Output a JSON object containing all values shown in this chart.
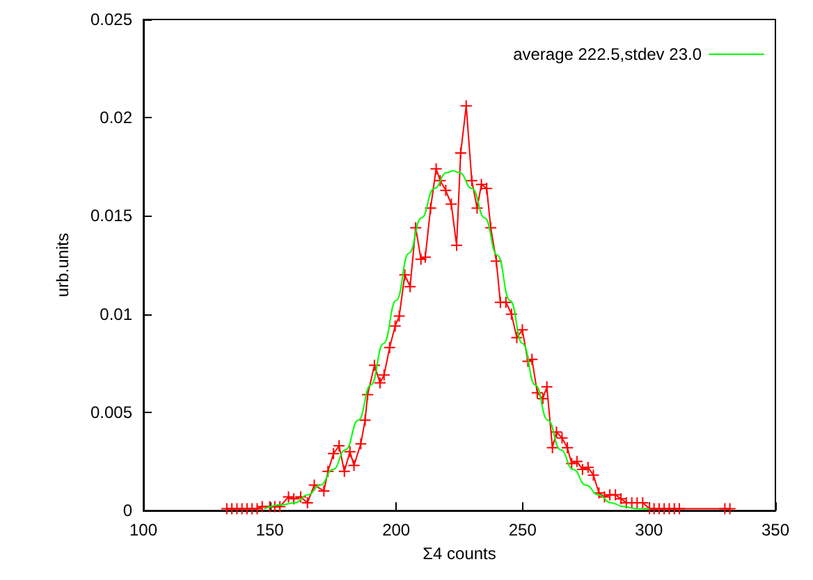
{
  "chart_data": {
    "type": "line",
    "xlabel": "Σ4 counts",
    "ylabel": "urb.units",
    "xlim": [
      100,
      350
    ],
    "xticks": [
      100,
      150,
      200,
      250,
      300,
      350
    ],
    "ylim": [
      0,
      0.025
    ],
    "yticks": [
      0,
      0.005,
      0.01,
      0.015,
      0.02,
      0.025
    ],
    "grid": false,
    "legend": "top right",
    "series": [
      {
        "color": "#ff0000",
        "marker": "cross",
        "x": [
          133,
          135,
          137,
          139,
          141,
          143,
          145,
          147,
          150,
          152,
          154,
          157.4,
          159.5,
          162.2,
          164.9,
          167.6,
          171.4,
          173,
          175.2,
          177.4,
          179.5,
          181.7,
          183.3,
          186,
          187.7,
          188.7,
          191.4,
          193.6,
          195.2,
          197.4,
          199.6,
          201.2,
          203.4,
          205.5,
          207.7,
          209.8,
          211.5,
          213.6,
          215.8,
          217.4,
          219.6,
          221.8,
          223.9,
          225.5,
          227.7,
          229.9,
          232,
          233.7,
          235.8,
          237.4,
          239.6,
          241.2,
          243.4,
          245.6,
          247.7,
          249.9,
          252.1,
          253.7,
          255.8,
          258,
          259.6,
          261.8,
          263.4,
          265.6,
          267.7,
          269.4,
          271.5,
          273.7,
          275.9,
          278,
          280.2,
          282.4,
          284.5,
          286.7,
          288.9,
          291,
          293.2,
          295.3,
          297.5,
          300.2,
          302,
          304,
          306,
          308,
          310,
          312,
          330,
          332
        ],
        "values": [
          0.0001,
          0.0001,
          0.0001,
          0.0001,
          0.0001,
          0.0001,
          0.0001,
          0.0002,
          0.0002,
          0.0002,
          0.0002,
          0.0007,
          0.0006,
          0.0007,
          0.0004,
          0.0013,
          0.001,
          0.002,
          0.0029,
          0.0033,
          0.002,
          0.003,
          0.0023,
          0.0034,
          0.0046,
          0.0059,
          0.0074,
          0.0065,
          0.0069,
          0.0083,
          0.0094,
          0.0099,
          0.012,
          0.0114,
          0.0144,
          0.0128,
          0.0129,
          0.0154,
          0.0174,
          0.0168,
          0.0163,
          0.0156,
          0.0135,
          0.0182,
          0.0206,
          0.0168,
          0.0154,
          0.0166,
          0.0164,
          0.0144,
          0.0127,
          0.0106,
          0.0106,
          0.01,
          0.0088,
          0.0092,
          0.0076,
          0.0077,
          0.006,
          0.0057,
          0.0063,
          0.0032,
          0.004,
          0.0037,
          0.0032,
          0.0024,
          0.0025,
          0.0021,
          0.0022,
          0.0018,
          0.0009,
          0.0007,
          0.0008,
          0.0008,
          0.0006,
          0.0004,
          0.0004,
          0.0004,
          0.0004,
          0.0001,
          0.0001,
          0.0001,
          0.0001,
          0.0001,
          0.0001,
          0.0001,
          0.0001,
          0.0001
        ]
      },
      {
        "name": "average 222.5,stdev 23.0",
        "color": "#00ff00",
        "marker": "none",
        "x": [
          148,
          155,
          160,
          165,
          170,
          175,
          180,
          185,
          190,
          195,
          200,
          205,
          210,
          215,
          220,
          222.5,
          225,
          230,
          235,
          240,
          245,
          250,
          255,
          260,
          265,
          270,
          275,
          280,
          285,
          290,
          295,
          300
        ],
        "values": [
          0.0001,
          0.0003,
          0.0004,
          0.0008,
          0.0013,
          0.0021,
          0.0031,
          0.0046,
          0.0064,
          0.0085,
          0.0107,
          0.0131,
          0.0149,
          0.0164,
          0.0172,
          0.0173,
          0.0172,
          0.0164,
          0.0149,
          0.013,
          0.0107,
          0.0085,
          0.0064,
          0.0046,
          0.0031,
          0.0021,
          0.0013,
          0.0008,
          0.0004,
          0.0002,
          0.0001,
          0.0001
        ]
      }
    ]
  }
}
